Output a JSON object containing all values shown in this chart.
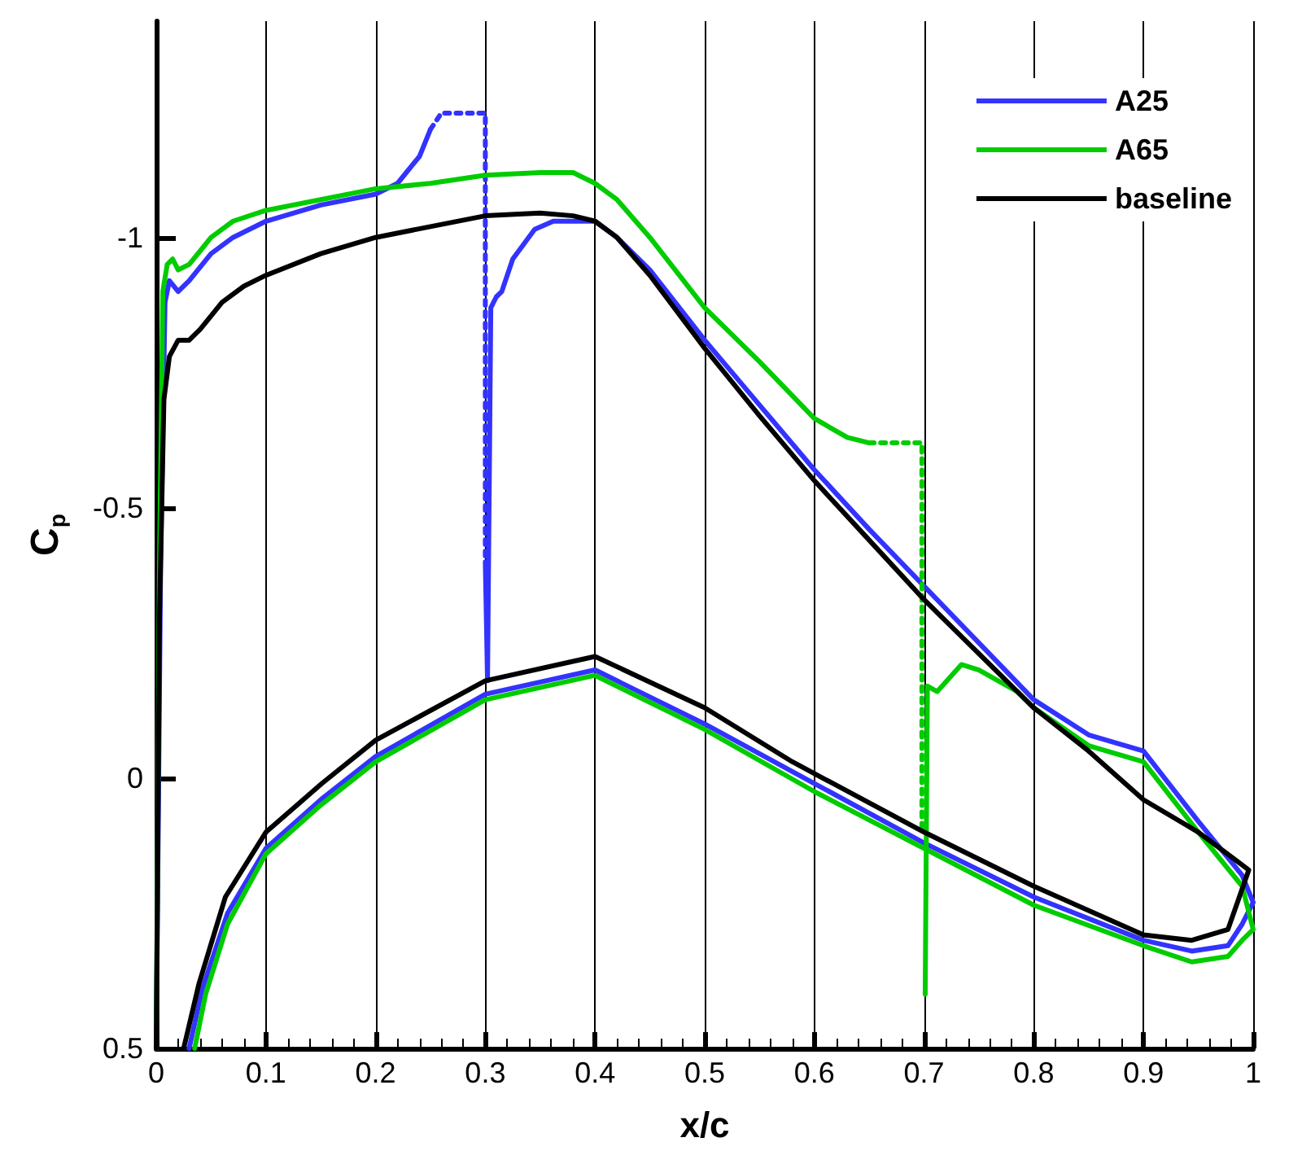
{
  "chart_data": {
    "type": "line",
    "xlabel": "x/c",
    "ylabel": "C$_{p}$",
    "xlim": [
      0,
      1
    ],
    "ylim": [
      0.5,
      -1.4
    ],
    "xticks": [
      0,
      0.1,
      0.2,
      0.3,
      0.4,
      0.5,
      0.6,
      0.7,
      0.8,
      0.9,
      1
    ],
    "yticks": [
      -1,
      -0.5,
      0,
      0.5
    ],
    "grid": "x",
    "legend": "top right",
    "marker": "none",
    "line_style": "solid",
    "series": [
      {
        "name": "A25",
        "color": "#3333ff",
        "x": [
          0,
          0.004,
          0.008,
          0.012,
          0.02,
          0.03,
          0.05,
          0.07,
          0.1,
          0.15,
          0.2,
          0.22,
          0.24,
          0.25
        ],
        "values": [
          0.5,
          -0.4,
          -0.88,
          -0.92,
          -0.9,
          -0.92,
          -0.97,
          -1.0,
          -1.03,
          -1.06,
          -1.08,
          -1.1,
          -1.15,
          -1.2
        ]
      },
      {
        "color": "#3333ff",
        "x": [
          0.3,
          0.302,
          0.305,
          0.31,
          0.315,
          0.325,
          0.345,
          0.362,
          0.4,
          0.42,
          0.45,
          0.5,
          0.55,
          0.6,
          0.65,
          0.7,
          0.75,
          0.8,
          0.85,
          0.9,
          0.95,
          0.99,
          1.0,
          0.99,
          0.977,
          0.944,
          0.9,
          0.8,
          0.7,
          0.6,
          0.5,
          0.4,
          0.3,
          0.2,
          0.15,
          0.1,
          0.065,
          0.042,
          0.03
        ],
        "values": [
          -0.4,
          -0.18,
          -0.87,
          -0.89,
          -0.9,
          -0.96,
          -1.015,
          -1.03,
          -1.03,
          -1.0,
          -0.94,
          -0.81,
          -0.69,
          -0.57,
          -0.46,
          -0.355,
          -0.25,
          -0.145,
          -0.08,
          -0.05,
          0.08,
          0.18,
          0.23,
          0.27,
          0.31,
          0.32,
          0.3,
          0.22,
          0.12,
          0.01,
          -0.1,
          -0.2,
          -0.155,
          -0.04,
          0.04,
          0.13,
          0.25,
          0.39,
          0.5
        ]
      },
      {
        "line_style": "dotted",
        "color": "#3333ff",
        "x": [
          0.25,
          0.26,
          0.3,
          0.3
        ],
        "values": [
          -1.2,
          -1.23,
          -1.23,
          -0.4
        ]
      },
      {
        "name": "A65",
        "color": "#00cc00",
        "x": [
          0,
          0.003,
          0.006,
          0.01,
          0.015,
          0.02,
          0.03,
          0.05,
          0.07,
          0.1,
          0.15,
          0.2,
          0.25,
          0.3,
          0.35,
          0.38,
          0.4,
          0.42,
          0.45,
          0.5,
          0.55,
          0.6,
          0.63,
          0.65
        ],
        "values": [
          0.5,
          -0.4,
          -0.9,
          -0.95,
          -0.96,
          -0.94,
          -0.95,
          -1.0,
          -1.03,
          -1.05,
          -1.07,
          -1.09,
          -1.1,
          -1.115,
          -1.12,
          -1.12,
          -1.1,
          -1.07,
          -1.0,
          -0.87,
          -0.77,
          -0.665,
          -0.63,
          -0.62
        ]
      },
      {
        "color": "#00cc00",
        "x": [
          0.701,
          0.703,
          0.712,
          0.734,
          0.75,
          0.785,
          0.8,
          0.85,
          0.9,
          0.95,
          0.99,
          1.0,
          0.99,
          0.977,
          0.944,
          0.9,
          0.8,
          0.7,
          0.6,
          0.5,
          0.4,
          0.3,
          0.2,
          0.15,
          0.1,
          0.065,
          0.045,
          0.035
        ],
        "values": [
          0.4,
          -0.17,
          -0.16,
          -0.21,
          -0.2,
          -0.16,
          -0.13,
          -0.06,
          -0.03,
          0.1,
          0.2,
          0.28,
          0.3,
          0.33,
          0.34,
          0.31,
          0.235,
          0.13,
          0.025,
          -0.09,
          -0.19,
          -0.145,
          -0.03,
          0.05,
          0.14,
          0.27,
          0.4,
          0.5
        ]
      },
      {
        "line_style": "dotted",
        "color": "#00cc00",
        "x": [
          0.65,
          0.698,
          0.698
        ],
        "values": [
          -0.62,
          -0.62,
          0.1
        ]
      },
      {
        "name": "baseline",
        "color": "#000000",
        "x": [
          0,
          0.003,
          0.007,
          0.012,
          0.02,
          0.03,
          0.04,
          0.06,
          0.08,
          0.1,
          0.15,
          0.2,
          0.25,
          0.3,
          0.35,
          0.38,
          0.4,
          0.42,
          0.45,
          0.5,
          0.55,
          0.6,
          0.65,
          0.7,
          0.75,
          0.8,
          0.85,
          0.9,
          0.95,
          0.996,
          0.977,
          0.944,
          0.9,
          0.8,
          0.7,
          0.58,
          0.5,
          0.4,
          0.3,
          0.2,
          0.151,
          0.1,
          0.063,
          0.039,
          0.025
        ],
        "values": [
          0.5,
          -0.3,
          -0.7,
          -0.78,
          -0.81,
          -0.81,
          -0.83,
          -0.88,
          -0.91,
          -0.93,
          -0.97,
          -1.0,
          -1.02,
          -1.04,
          -1.045,
          -1.04,
          -1.03,
          -1.0,
          -0.93,
          -0.795,
          -0.67,
          -0.55,
          -0.44,
          -0.33,
          -0.23,
          -0.13,
          -0.05,
          0.04,
          0.1,
          0.17,
          0.28,
          0.3,
          0.29,
          0.2,
          0.1,
          -0.03,
          -0.13,
          -0.225,
          -0.18,
          -0.07,
          0.01,
          0.1,
          0.22,
          0.38,
          0.5
        ]
      }
    ]
  }
}
